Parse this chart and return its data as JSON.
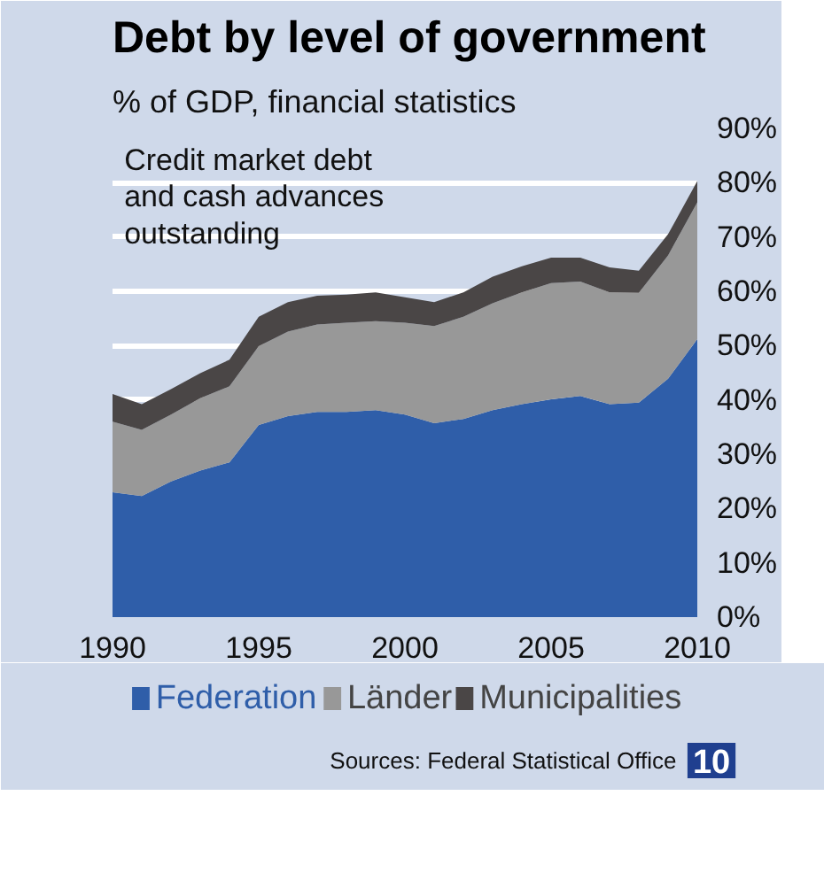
{
  "chart_data": {
    "type": "area",
    "stacked": true,
    "title": "Debt by level of government",
    "subtitle": "% of GDP, financial statistics",
    "annotations": [
      "Credit market debt\nand cash advances\noutstanding",
      "Sources: Federal Statistical Office",
      "10"
    ],
    "x": [
      1990,
      1991,
      1992,
      1993,
      1994,
      1995,
      1996,
      1997,
      1998,
      1999,
      2000,
      2001,
      2002,
      2003,
      2004,
      2005,
      2006,
      2007,
      2008,
      2009,
      2010
    ],
    "series": [
      {
        "name": "Federation",
        "color": "#2f5ea9",
        "values": [
          23.0,
          22.3,
          25.0,
          27.0,
          28.5,
          35.4,
          37.0,
          37.8,
          37.8,
          38.1,
          37.3,
          35.7,
          36.5,
          38.1,
          39.2,
          40.1,
          40.7,
          39.2,
          39.5,
          43.9,
          51.2
        ]
      },
      {
        "name": "Länder",
        "color": "#989898",
        "values": [
          13.0,
          12.2,
          12.3,
          13.3,
          14.0,
          14.5,
          15.6,
          16.1,
          16.4,
          16.4,
          16.9,
          17.9,
          18.8,
          19.7,
          20.6,
          21.4,
          21.1,
          20.6,
          20.2,
          22.7,
          25.2
        ]
      },
      {
        "name": "Municipalities",
        "color": "#4a4646",
        "values": [
          5.1,
          4.7,
          4.7,
          4.6,
          4.9,
          5.4,
          5.4,
          5.3,
          5.2,
          5.3,
          4.7,
          4.4,
          4.5,
          4.9,
          4.8,
          4.7,
          4.4,
          4.6,
          4.1,
          3.9,
          3.9
        ]
      }
    ],
    "xlim": [
      1990,
      2010
    ],
    "xticks": [
      1990,
      1995,
      2000,
      2005,
      2010
    ],
    "ylim": [
      0,
      90
    ],
    "yticks": [
      {
        "value": 0,
        "label": "0%"
      },
      {
        "value": 10,
        "label": "10%"
      },
      {
        "value": 20,
        "label": "20%"
      },
      {
        "value": 30,
        "label": "30%"
      },
      {
        "value": 40,
        "label": "40%"
      },
      {
        "value": 50,
        "label": "50%"
      },
      {
        "value": 60,
        "label": "60%"
      },
      {
        "value": 70,
        "label": "70%"
      },
      {
        "value": 80,
        "label": "80%"
      },
      {
        "value": 90,
        "label": "90%"
      }
    ],
    "grid": "y",
    "legend": "bottom"
  }
}
